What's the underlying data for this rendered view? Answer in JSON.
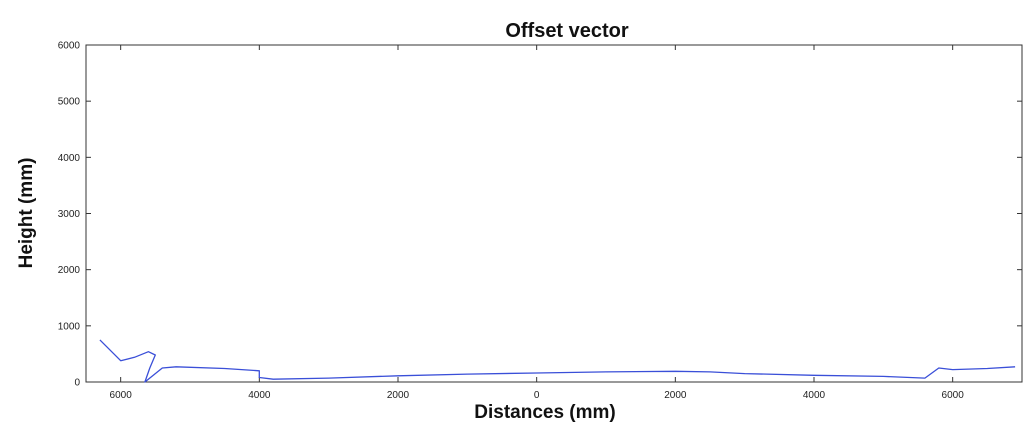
{
  "chart_data": {
    "type": "line",
    "title": "Offset vector",
    "xlabel": "Distances (mm)",
    "ylabel": "Height (mm)",
    "xlim": [
      -6500,
      7000
    ],
    "ylim": [
      0,
      6000
    ],
    "x_ticks": [
      -6000,
      -4000,
      -2000,
      0,
      2000,
      4000,
      6000
    ],
    "x_tick_labels": [
      "6000",
      "4000",
      "2000",
      "0",
      "2000",
      "4000",
      "6000"
    ],
    "y_ticks": [
      0,
      1000,
      2000,
      3000,
      4000,
      5000,
      6000
    ],
    "y_tick_labels": [
      "0",
      "1000",
      "2000",
      "3000",
      "4000",
      "5000",
      "6000"
    ],
    "grid": false,
    "legend": false,
    "series_color": "#3a4fd8",
    "series": [
      {
        "x": [
          -6300,
          -6000,
          -5800,
          -5600,
          -5500,
          -5580,
          -5650,
          -5400,
          -5200,
          -4500,
          -4000,
          -4000,
          -3800,
          -3000,
          -2000,
          -1000,
          0,
          1000,
          2000,
          2500,
          3000,
          4000,
          5000,
          5600,
          5800,
          6000,
          6500,
          6900
        ],
        "y": [
          750,
          380,
          440,
          540,
          480,
          250,
          0,
          250,
          270,
          240,
          200,
          80,
          50,
          70,
          110,
          140,
          160,
          180,
          190,
          180,
          150,
          120,
          100,
          70,
          250,
          220,
          240,
          270
        ]
      }
    ]
  }
}
